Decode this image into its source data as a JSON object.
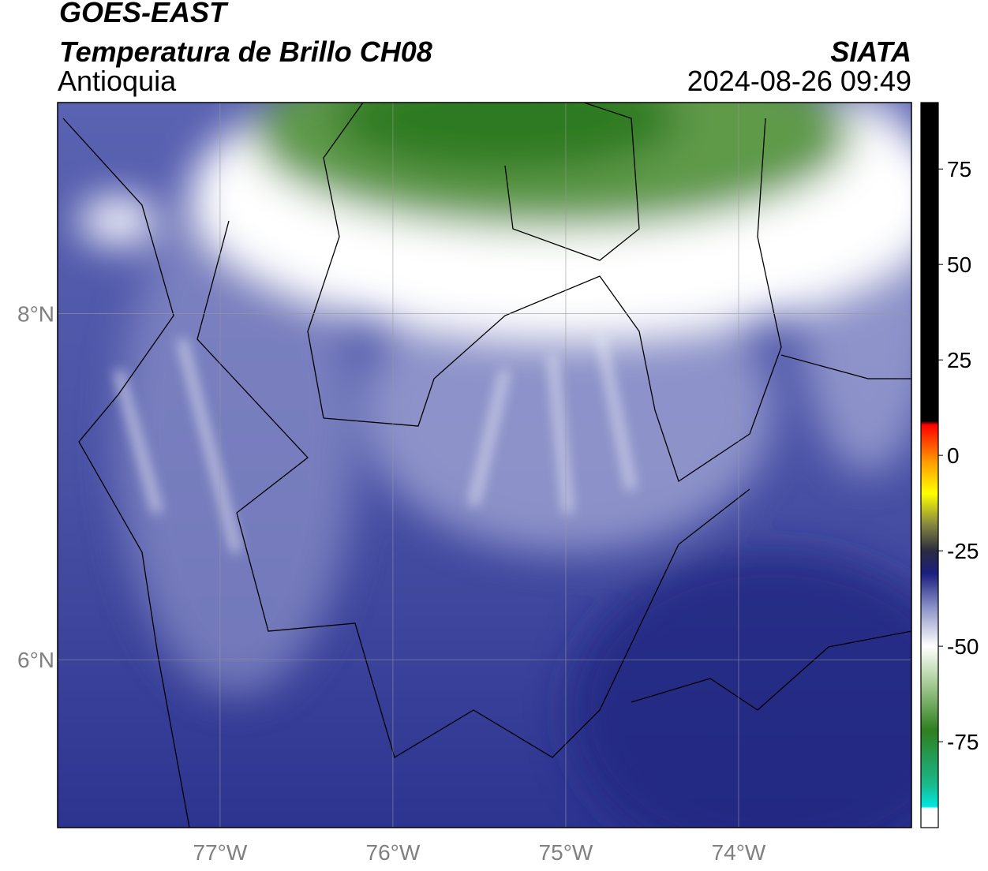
{
  "header": {
    "source": "GOES-EAST",
    "title": "Temperatura de Brillo CH08",
    "region": "Antioquia",
    "agency": "SIATA",
    "datetime": "2024-08-26 09:49"
  },
  "map": {
    "xlim": [
      -77.94,
      -73.0
    ],
    "ylim": [
      5.03,
      9.22
    ],
    "xticks": [
      {
        "value": -77,
        "label": "77°W"
      },
      {
        "value": -76,
        "label": "76°W"
      },
      {
        "value": -75,
        "label": "75°W"
      },
      {
        "value": -74,
        "label": "74°W"
      }
    ],
    "yticks": [
      {
        "value": 6,
        "label": "6°N"
      },
      {
        "value": 8,
        "label": "8°N"
      }
    ],
    "grid": true
  },
  "colorbar": {
    "lim": [
      -97.5,
      92.4
    ],
    "ticks": [
      75,
      50,
      25,
      0,
      -25,
      -50,
      -75
    ],
    "colormap": [
      {
        "value": -97.5,
        "color": "#ffffff"
      },
      {
        "value": -92.5,
        "color": "#ffffff"
      },
      {
        "value": -92,
        "color": "#00e8e0"
      },
      {
        "value": -86,
        "color": "#1ab88a"
      },
      {
        "value": -72,
        "color": "#2f7f1f"
      },
      {
        "value": -58,
        "color": "#b8d6a8"
      },
      {
        "value": -50,
        "color": "#ffffff"
      },
      {
        "value": -40,
        "color": "#8d93c8"
      },
      {
        "value": -31,
        "color": "#1b1f80"
      },
      {
        "value": -25,
        "color": "#2b2b40"
      },
      {
        "value": -18,
        "color": "#888840"
      },
      {
        "value": -10,
        "color": "#ffff00"
      },
      {
        "value": -2,
        "color": "#ffa000"
      },
      {
        "value": 8,
        "color": "#ff0000"
      },
      {
        "value": 9,
        "color": "#000000"
      },
      {
        "value": 92.4,
        "color": "#000000"
      }
    ]
  }
}
